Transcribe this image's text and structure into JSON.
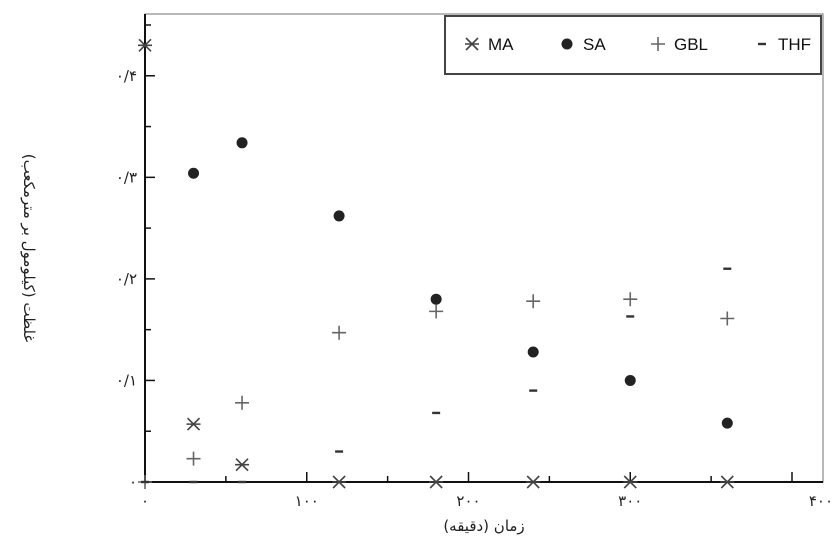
{
  "chart_data": {
    "type": "scatter",
    "xlabel": "زمان (دقیقه)",
    "ylabel": "غلظت (کیلومول بر مترمکعب)",
    "xlim": [
      0,
      400
    ],
    "ylim": [
      0,
      0.45
    ],
    "x_ticks": [
      {
        "value": 0,
        "label": "۰"
      },
      {
        "value": 100,
        "label": "۱۰۰"
      },
      {
        "value": 200,
        "label": "۲۰۰"
      },
      {
        "value": 300,
        "label": "۳۰۰"
      },
      {
        "value": 400,
        "label": "۴۰۰"
      }
    ],
    "y_ticks": [
      {
        "value": 0,
        "label": "۰"
      },
      {
        "value": 0.1,
        "label": "۰/۱"
      },
      {
        "value": 0.2,
        "label": "۰/۲"
      },
      {
        "value": 0.3,
        "label": "۰/۳"
      },
      {
        "value": 0.4,
        "label": "۰/۴"
      }
    ],
    "legend_position": "top-right",
    "series": [
      {
        "name": "MA",
        "marker": "asterisk",
        "color": "#444444",
        "x": [
          0,
          30,
          60,
          120,
          180,
          240,
          300,
          360
        ],
        "y": [
          0.43,
          0.057,
          0.017,
          0,
          0,
          0,
          0,
          0
        ]
      },
      {
        "name": "SA",
        "marker": "circle",
        "color": "#222222",
        "x": [
          30,
          60,
          120,
          180,
          240,
          300,
          360
        ],
        "y": [
          0.304,
          0.334,
          0.262,
          0.18,
          0.128,
          0.1,
          0.058
        ]
      },
      {
        "name": "GBL",
        "marker": "plus",
        "color": "#666666",
        "x": [
          0,
          30,
          60,
          120,
          180,
          240,
          300,
          360
        ],
        "y": [
          0,
          0.023,
          0.078,
          0.147,
          0.168,
          0.178,
          0.18,
          0.161
        ]
      },
      {
        "name": "THF",
        "marker": "dash",
        "color": "#333333",
        "x": [
          0,
          30,
          60,
          120,
          180,
          240,
          300,
          360
        ],
        "y": [
          0,
          0,
          0,
          0.03,
          0.068,
          0.09,
          0.163,
          0.21
        ]
      }
    ]
  }
}
